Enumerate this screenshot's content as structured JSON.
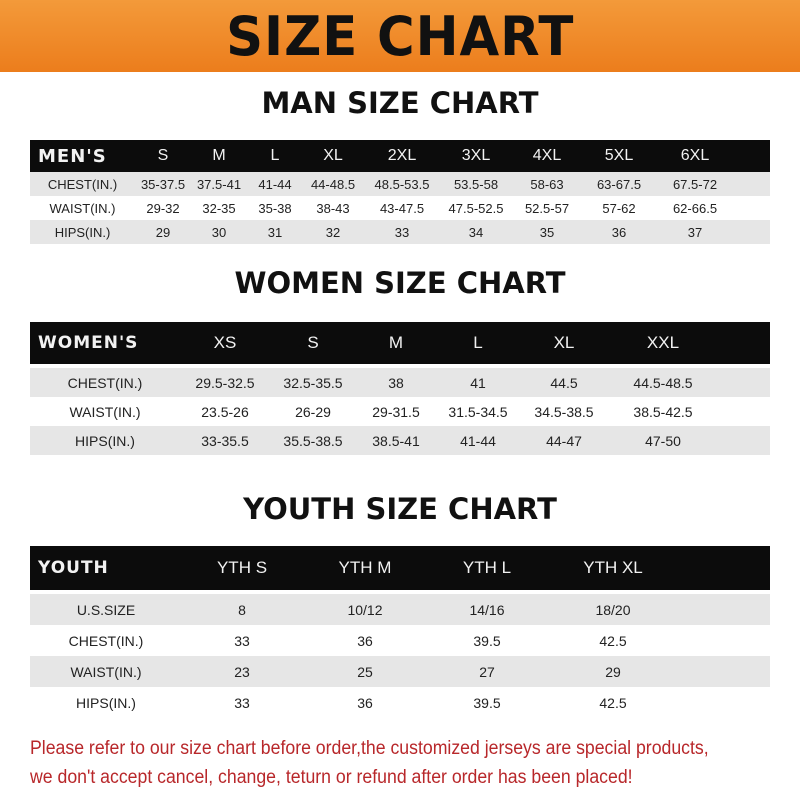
{
  "banner": {
    "title": "SIZE CHART",
    "color": "#ef8a28"
  },
  "men": {
    "title": "MAN SIZE CHART",
    "header": [
      "MEN'S",
      "S",
      "M",
      "L",
      "XL",
      "2XL",
      "3XL",
      "4XL",
      "5XL",
      "6XL"
    ],
    "rows": [
      [
        "CHEST(IN.)",
        "35-37.5",
        "37.5-41",
        "41-44",
        "44-48.5",
        "48.5-53.5",
        "53.5-58",
        "58-63",
        "63-67.5",
        "67.5-72"
      ],
      [
        "WAIST(IN.)",
        "29-32",
        "32-35",
        "35-38",
        "38-43",
        "43-47.5",
        "47.5-52.5",
        "52.5-57",
        "57-62",
        "62-66.5"
      ],
      [
        "HIPS(IN.)",
        "29",
        "30",
        "31",
        "32",
        "33",
        "34",
        "35",
        "36",
        "37"
      ]
    ]
  },
  "women": {
    "title": "WOMEN SIZE CHART",
    "header": [
      "WOMEN'S",
      "XS",
      "S",
      "M",
      "L",
      "XL",
      "XXL"
    ],
    "rows": [
      [
        "CHEST(IN.)",
        "29.5-32.5",
        "32.5-35.5",
        "38",
        "41",
        "44.5",
        "44.5-48.5"
      ],
      [
        "WAIST(IN.)",
        "23.5-26",
        "26-29",
        "29-31.5",
        "31.5-34.5",
        "34.5-38.5",
        "38.5-42.5"
      ],
      [
        "HIPS(IN.)",
        "33-35.5",
        "35.5-38.5",
        "38.5-41",
        "41-44",
        "44-47",
        "47-50"
      ]
    ]
  },
  "youth": {
    "title": "YOUTH SIZE CHART",
    "header": [
      "YOUTH",
      "YTH S",
      "YTH M",
      "YTH L",
      "YTH XL"
    ],
    "rows": [
      [
        "U.S.SIZE",
        "8",
        "10/12",
        "14/16",
        "18/20"
      ],
      [
        "CHEST(IN.)",
        "33",
        "36",
        "39.5",
        "42.5"
      ],
      [
        "WAIST(IN.)",
        "23",
        "25",
        "27",
        "29"
      ],
      [
        "HIPS(IN.)",
        "33",
        "36",
        "39.5",
        "42.5"
      ]
    ]
  },
  "note": {
    "line1": "Please refer to our size chart before order,the customized jerseys are special products,",
    "line2": "we don't accept cancel, change, teturn or refund after order has been placed!",
    "color": "#b8272a"
  }
}
